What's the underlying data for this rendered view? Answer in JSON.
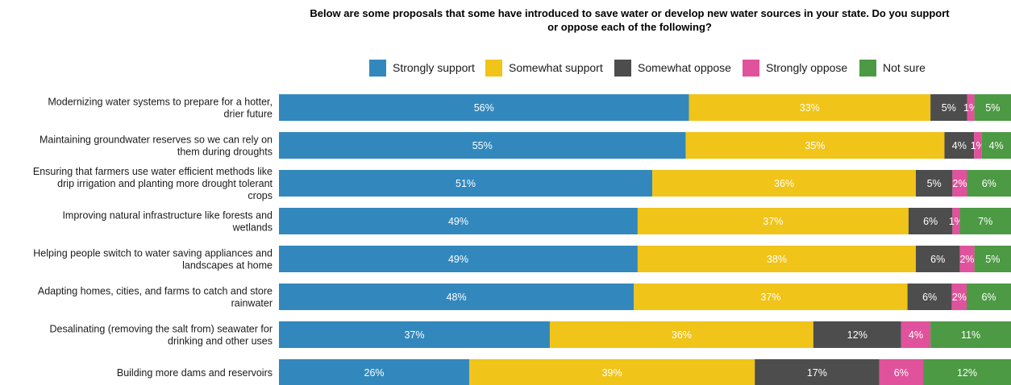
{
  "chart_data": {
    "type": "bar",
    "orientation": "horizontal",
    "stacked": true,
    "title_lines": [
      "Below are some proposals that some have introduced to save water or develop new water sources in your state. Do you support",
      "or oppose each of the following?"
    ],
    "legend_position": "top",
    "categories": [
      [
        "Modernizing water systems to prepare for a hotter,",
        "drier future"
      ],
      [
        "Maintaining groundwater reserves so we can rely on",
        "them during droughts"
      ],
      [
        "Ensuring that farmers use water efficient methods like",
        "drip irrigation and planting more drought tolerant",
        "crops"
      ],
      [
        "Improving natural infrastructure like forests and",
        "wetlands"
      ],
      [
        "Helping people switch to water saving appliances and",
        "landscapes at home"
      ],
      [
        "Adapting homes, cities, and farms to catch and store",
        "rainwater"
      ],
      [
        "Desalinating (removing the salt from) seawater for",
        "drinking and other uses"
      ],
      [
        "Building more dams and reservoirs"
      ]
    ],
    "series": [
      {
        "name": "Strongly support",
        "color": "#3288bd",
        "values": [
          56,
          55,
          51,
          49,
          49,
          48,
          37,
          26
        ]
      },
      {
        "name": "Somewhat support",
        "color": "#f0c419",
        "values": [
          33,
          35,
          36,
          37,
          38,
          37,
          36,
          39
        ]
      },
      {
        "name": "Somewhat oppose",
        "color": "#4d4d4d",
        "values": [
          5,
          4,
          5,
          6,
          6,
          6,
          12,
          17
        ]
      },
      {
        "name": "Strongly oppose",
        "color": "#e0529c",
        "values": [
          1,
          1,
          2,
          1,
          2,
          2,
          4,
          6
        ]
      },
      {
        "name": "Not sure",
        "color": "#4c9a44",
        "values": [
          5,
          4,
          6,
          7,
          5,
          6,
          11,
          12
        ]
      }
    ],
    "value_suffix": "%",
    "grid": false
  }
}
